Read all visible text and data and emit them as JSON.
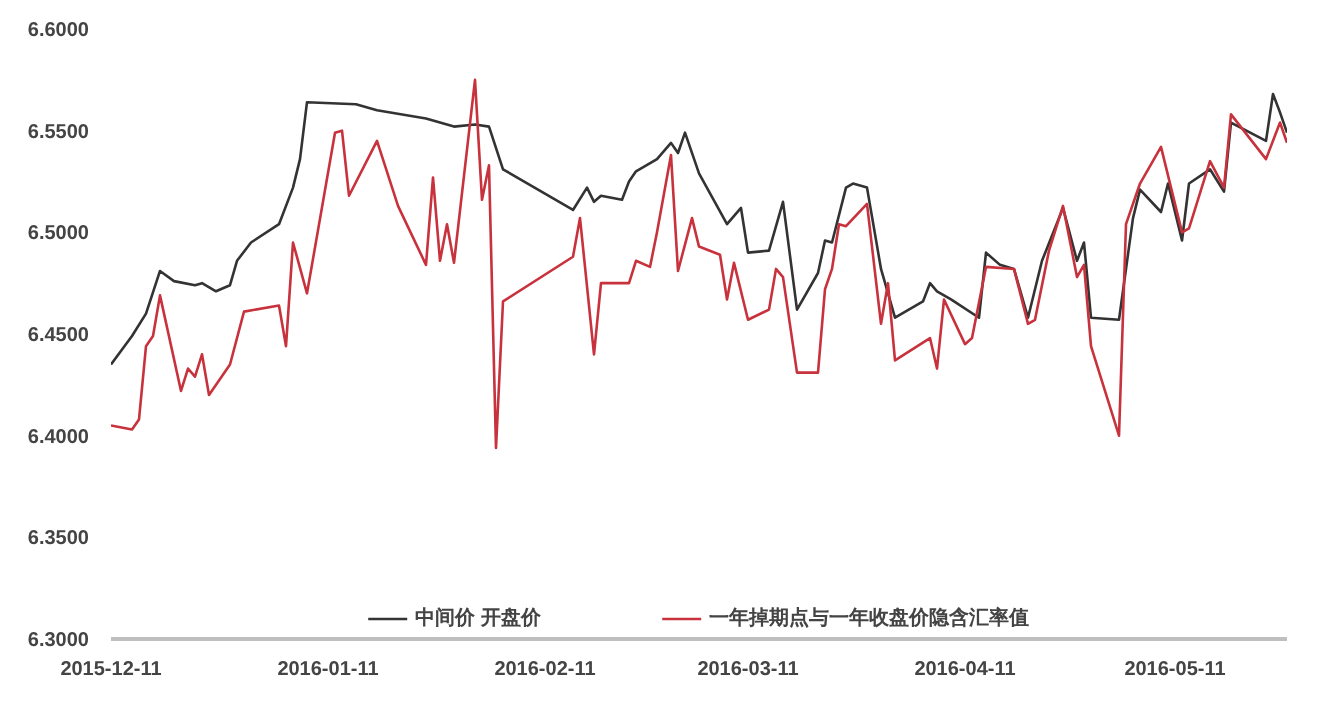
{
  "chart_data": {
    "type": "line",
    "legend": "bottom",
    "grid": false,
    "line_style": "solid",
    "marker": "none",
    "xlim": [
      "2015-12-11",
      "2016-05-27"
    ],
    "xticks": [
      "2015-12-11",
      "2016-01-11",
      "2016-02-11",
      "2016-03-11",
      "2016-04-11",
      "2016-05-11"
    ],
    "ylim": [
      6.3,
      6.6
    ],
    "yticks": [
      {
        "value": 6.3,
        "label": "6.3000"
      },
      {
        "value": 6.35,
        "label": "6.3500"
      },
      {
        "value": 6.4,
        "label": "6.4000"
      },
      {
        "value": 6.45,
        "label": "6.4500"
      },
      {
        "value": 6.5,
        "label": "6.5000"
      },
      {
        "value": 6.55,
        "label": "6.5500"
      },
      {
        "value": 6.6,
        "label": "6.6000"
      }
    ],
    "series": [
      {
        "name": "中间价 开盘价",
        "color": "#333333",
        "x": [
          "2015-12-11",
          "2015-12-14",
          "2015-12-16",
          "2015-12-18",
          "2015-12-20",
          "2015-12-23",
          "2015-12-24",
          "2015-12-26",
          "2015-12-28",
          "2015-12-29",
          "2015-12-31",
          "2016-01-04",
          "2016-01-06",
          "2016-01-07",
          "2016-01-08",
          "2016-01-15",
          "2016-01-18",
          "2016-01-25",
          "2016-01-29",
          "2016-02-01",
          "2016-02-03",
          "2016-02-05",
          "2016-02-15",
          "2016-02-17",
          "2016-02-18",
          "2016-02-19",
          "2016-02-22",
          "2016-02-23",
          "2016-02-24",
          "2016-02-27",
          "2016-02-29",
          "2016-03-01",
          "2016-03-02",
          "2016-03-04",
          "2016-03-08",
          "2016-03-10",
          "2016-03-11",
          "2016-03-14",
          "2016-03-16",
          "2016-03-18",
          "2016-03-21",
          "2016-03-22",
          "2016-03-23",
          "2016-03-25",
          "2016-03-26",
          "2016-03-28",
          "2016-03-30",
          "2016-04-01",
          "2016-04-05",
          "2016-04-06",
          "2016-04-07",
          "2016-04-09",
          "2016-04-13",
          "2016-04-14",
          "2016-04-16",
          "2016-04-18",
          "2016-04-20",
          "2016-04-22",
          "2016-04-25",
          "2016-04-27",
          "2016-04-28",
          "2016-04-29",
          "2016-05-03",
          "2016-05-05",
          "2016-05-06",
          "2016-05-09",
          "2016-05-10",
          "2016-05-12",
          "2016-05-13",
          "2016-05-16",
          "2016-05-18",
          "2016-05-19",
          "2016-05-24",
          "2016-05-25",
          "2016-05-26",
          "2016-05-27"
        ],
        "values": [
          6.435,
          6.449,
          6.46,
          6.481,
          6.476,
          6.474,
          6.475,
          6.471,
          6.474,
          6.486,
          6.495,
          6.504,
          6.522,
          6.536,
          6.564,
          6.563,
          6.56,
          6.556,
          6.552,
          6.553,
          6.552,
          6.531,
          6.511,
          6.522,
          6.515,
          6.518,
          6.516,
          6.525,
          6.53,
          6.536,
          6.544,
          6.539,
          6.549,
          6.529,
          6.504,
          6.512,
          6.49,
          6.491,
          6.515,
          6.462,
          6.48,
          6.496,
          6.495,
          6.522,
          6.524,
          6.522,
          6.482,
          6.458,
          6.466,
          6.475,
          6.471,
          6.467,
          6.458,
          6.49,
          6.484,
          6.482,
          6.458,
          6.486,
          6.512,
          6.486,
          6.495,
          6.458,
          6.457,
          6.507,
          6.521,
          6.51,
          6.524,
          6.496,
          6.524,
          6.531,
          6.52,
          6.554,
          6.545,
          6.568,
          6.559,
          6.549
        ]
      },
      {
        "name": "一年掉期点与一年收盘价隐含汇率值",
        "color": "#c8323c",
        "x": [
          "2015-12-11",
          "2015-12-14",
          "2015-12-15",
          "2015-12-16",
          "2015-12-17",
          "2015-12-18",
          "2015-12-21",
          "2015-12-22",
          "2015-12-23",
          "2015-12-24",
          "2015-12-25",
          "2015-12-28",
          "2015-12-30",
          "2016-01-04",
          "2016-01-05",
          "2016-01-06",
          "2016-01-08",
          "2016-01-12",
          "2016-01-13",
          "2016-01-14",
          "2016-01-18",
          "2016-01-21",
          "2016-01-25",
          "2016-01-26",
          "2016-01-27",
          "2016-01-28",
          "2016-01-29",
          "2016-02-01",
          "2016-02-02",
          "2016-02-03",
          "2016-02-04",
          "2016-02-05",
          "2016-02-15",
          "2016-02-16",
          "2016-02-18",
          "2016-02-19",
          "2016-02-23",
          "2016-02-24",
          "2016-02-26",
          "2016-02-27",
          "2016-02-29",
          "2016-03-01",
          "2016-03-03",
          "2016-03-04",
          "2016-03-07",
          "2016-03-08",
          "2016-03-09",
          "2016-03-11",
          "2016-03-14",
          "2016-03-15",
          "2016-03-16",
          "2016-03-18",
          "2016-03-21",
          "2016-03-22",
          "2016-03-23",
          "2016-03-24",
          "2016-03-25",
          "2016-03-28",
          "2016-03-30",
          "2016-03-31",
          "2016-04-01",
          "2016-04-06",
          "2016-04-07",
          "2016-04-08",
          "2016-04-11",
          "2016-04-12",
          "2016-04-14",
          "2016-04-18",
          "2016-04-20",
          "2016-04-21",
          "2016-04-23",
          "2016-04-25",
          "2016-04-27",
          "2016-04-28",
          "2016-04-29",
          "2016-05-03",
          "2016-05-04",
          "2016-05-06",
          "2016-05-09",
          "2016-05-12",
          "2016-05-13",
          "2016-05-16",
          "2016-05-18",
          "2016-05-19",
          "2016-05-24",
          "2016-05-26",
          "2016-05-27"
        ],
        "values": [
          6.405,
          6.403,
          6.408,
          6.444,
          6.449,
          6.469,
          6.422,
          6.433,
          6.429,
          6.44,
          6.42,
          6.435,
          6.461,
          6.464,
          6.444,
          6.495,
          6.47,
          6.549,
          6.55,
          6.518,
          6.545,
          6.513,
          6.484,
          6.527,
          6.486,
          6.504,
          6.485,
          6.575,
          6.516,
          6.533,
          6.394,
          6.466,
          6.488,
          6.507,
          6.44,
          6.475,
          6.475,
          6.486,
          6.483,
          6.5,
          6.538,
          6.481,
          6.507,
          6.493,
          6.489,
          6.467,
          6.485,
          6.457,
          6.462,
          6.482,
          6.478,
          6.431,
          6.431,
          6.472,
          6.482,
          6.504,
          6.503,
          6.514,
          6.455,
          6.475,
          6.437,
          6.448,
          6.433,
          6.467,
          6.445,
          6.448,
          6.483,
          6.482,
          6.455,
          6.457,
          6.491,
          6.513,
          6.478,
          6.484,
          6.444,
          6.4,
          6.504,
          6.524,
          6.542,
          6.5,
          6.502,
          6.535,
          6.522,
          6.558,
          6.536,
          6.554,
          6.544
        ]
      }
    ]
  }
}
